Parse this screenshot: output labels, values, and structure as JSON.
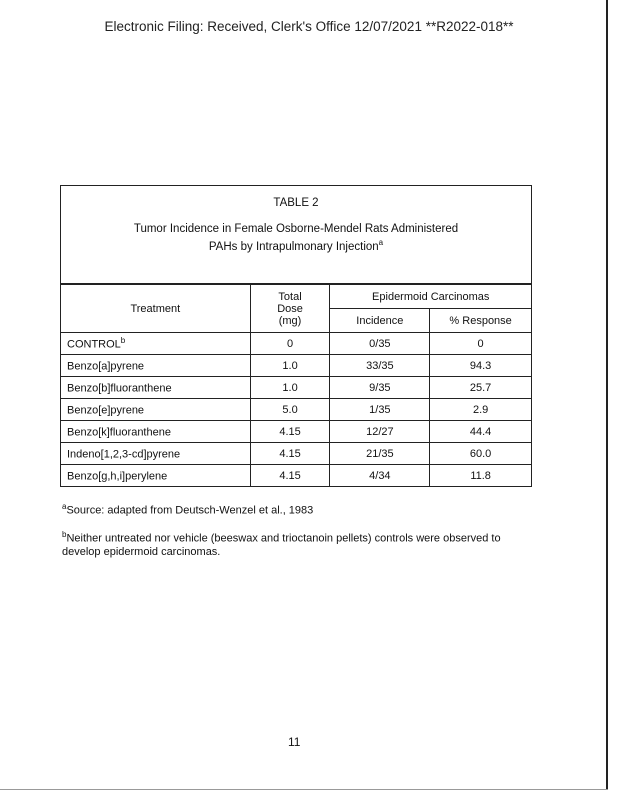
{
  "header": "Electronic Filing: Received, Clerk's Office 12/07/2021 **R2022-018**",
  "table": {
    "label": "TABLE 2",
    "title_line1": "Tumor Incidence in Female Osborne-Mendel Rats Administered",
    "title_line2": "PAHs by Intrapulmonary Injection",
    "title_note": "a",
    "columns": {
      "treatment": "Treatment",
      "dose": "Total Dose (mg)",
      "group": "Epidermoid Carcinomas",
      "incidence": "Incidence",
      "response": "% Response"
    },
    "rows": [
      {
        "treatment": "CONTROL",
        "note": "b",
        "dose": "0",
        "incidence": "0/35",
        "response": "0"
      },
      {
        "treatment": "Benzo[a]pyrene",
        "note": "",
        "dose": "1.0",
        "incidence": "33/35",
        "response": "94.3"
      },
      {
        "treatment": "Benzo[b]fluoranthene",
        "note": "",
        "dose": "1.0",
        "incidence": "9/35",
        "response": "25.7"
      },
      {
        "treatment": "Benzo[e]pyrene",
        "note": "",
        "dose": "5.0",
        "incidence": "1/35",
        "response": "2.9"
      },
      {
        "treatment": "Benzo[k]fluoranthene",
        "note": "",
        "dose": "4.15",
        "incidence": "12/27",
        "response": "44.4"
      },
      {
        "treatment": "Indeno[1,2,3-cd]pyrene",
        "note": "",
        "dose": "4.15",
        "incidence": "21/35",
        "response": "60.0"
      },
      {
        "treatment": "Benzo[g,h,i]perylene",
        "note": "",
        "dose": "4.15",
        "incidence": "4/34",
        "response": "11.8"
      }
    ]
  },
  "footnotes": [
    {
      "mark": "a",
      "text": "Source: adapted from Deutsch-Wenzel et al., 1983"
    },
    {
      "mark": "b",
      "text": "Neither untreated nor vehicle (beeswax and trioctanoin pellets) controls were observed to develop epidermoid carcinomas."
    }
  ],
  "page_number": "11"
}
